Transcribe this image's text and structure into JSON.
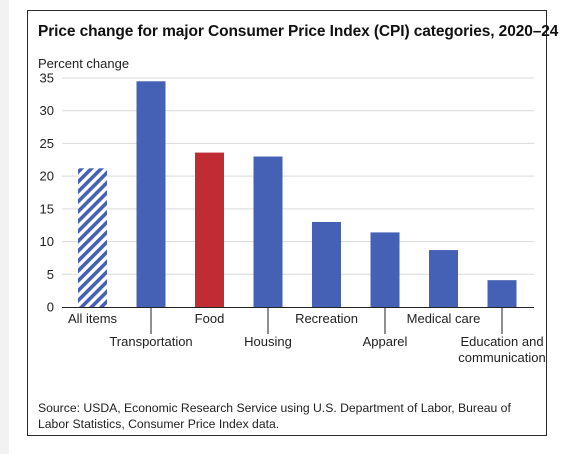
{
  "chart_data": {
    "type": "bar",
    "title": "Price change for major Consumer Price Index (CPI) categories, 2020–24",
    "ylabel": "Percent change",
    "xlabel": "",
    "ylim": [
      0,
      35
    ],
    "yticks": [
      0,
      5,
      10,
      15,
      20,
      25,
      30,
      35
    ],
    "grid": true,
    "categories": [
      [
        "All items"
      ],
      [
        "Transportation"
      ],
      [
        "Food"
      ],
      [
        "Housing"
      ],
      [
        "Recreation"
      ],
      [
        "Apparel"
      ],
      [
        "Medical care"
      ],
      [
        "Education and",
        "communication"
      ]
    ],
    "values": [
      21.2,
      34.5,
      23.6,
      23.0,
      13.0,
      11.4,
      8.7,
      4.1
    ],
    "bar_styles": [
      "hatched",
      "solid",
      "solid",
      "solid",
      "solid",
      "solid",
      "solid",
      "solid"
    ],
    "bar_colors": [
      "#4561b5",
      "#4561b5",
      "#bf2c34",
      "#4561b5",
      "#4561b5",
      "#4561b5",
      "#4561b5",
      "#4561b5"
    ]
  },
  "source_note": "Source: USDA, Economic Research Service using U.S. Department of Labor, Bureau of Labor Statistics, Consumer Price Index data."
}
